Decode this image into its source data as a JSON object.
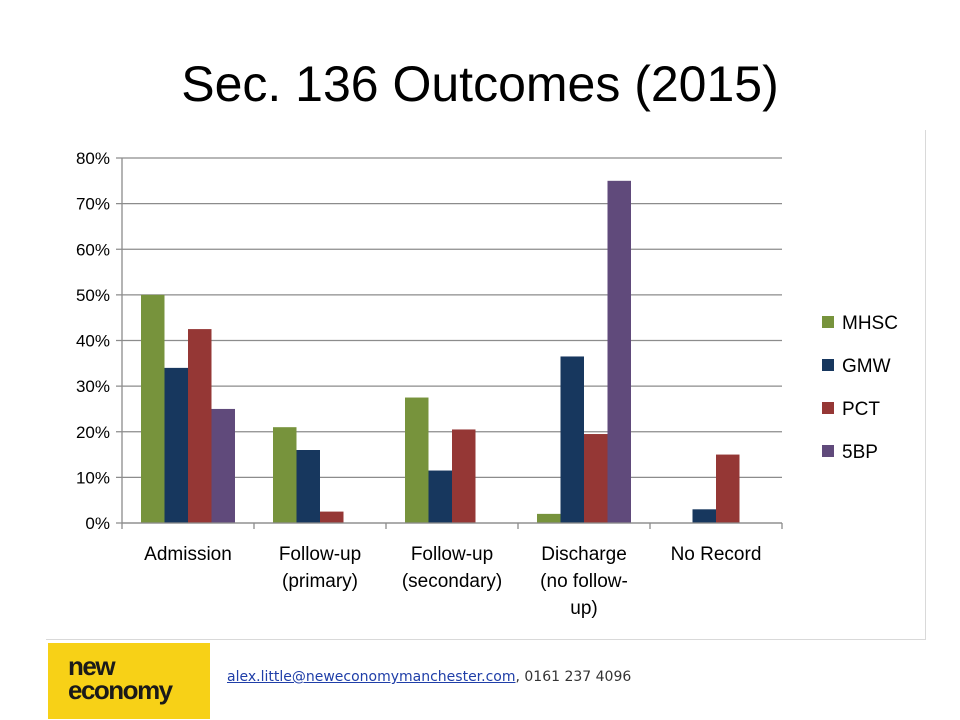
{
  "slide": {
    "title": "Sec. 136 Outcomes (2015)"
  },
  "footer": {
    "logo_line_1": "new",
    "logo_line_2": "economy",
    "email": "alex.little@neweconomymanchester.com",
    "phone": ", 0161 237 4096"
  },
  "colors": {
    "MHSC": "#77933c",
    "GMW": "#17375e",
    "PCT": "#953735",
    "5BP": "#604a7b",
    "logo_background": "#f7d117"
  },
  "chart_data": {
    "type": "bar",
    "categories": [
      [
        "Admission"
      ],
      [
        "Follow-up",
        "(primary)"
      ],
      [
        "Follow-up",
        "(secondary)"
      ],
      [
        "Discharge",
        "(no follow-",
        "up)"
      ],
      [
        "No Record"
      ]
    ],
    "series": [
      {
        "name": "MHSC",
        "values": [
          0.5,
          0.21,
          0.275,
          0.02,
          null
        ]
      },
      {
        "name": "GMW",
        "values": [
          0.34,
          0.16,
          0.115,
          0.365,
          0.03
        ]
      },
      {
        "name": "PCT",
        "values": [
          0.425,
          0.025,
          0.205,
          0.195,
          0.15
        ]
      },
      {
        "name": "5BP",
        "values": [
          0.25,
          null,
          null,
          0.75,
          null
        ]
      }
    ],
    "yticks": [
      "0%",
      "10%",
      "20%",
      "30%",
      "40%",
      "50%",
      "60%",
      "70%",
      "80%"
    ],
    "ylim": [
      0,
      0.8
    ],
    "grid": true,
    "legend_position": "right"
  }
}
